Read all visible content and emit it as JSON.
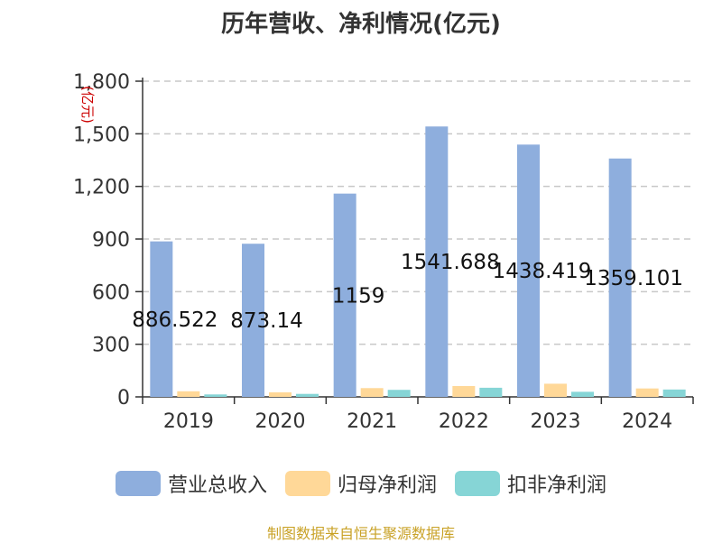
{
  "chart_data": {
    "type": "bar",
    "title": "历年营收、净利情况(亿元)",
    "ylabel": "(亿元)",
    "xlabel": "",
    "categories": [
      "2019",
      "2020",
      "2021",
      "2022",
      "2023",
      "2024"
    ],
    "series": [
      {
        "name": "营业总收入",
        "values": [
          886.522,
          873.14,
          1159,
          1541.688,
          1438.419,
          1359.101
        ],
        "color": "#8eaedd"
      },
      {
        "name": "归母净利润",
        "values": [
          32,
          26,
          50,
          62,
          75,
          48
        ],
        "color": "#ffd898"
      },
      {
        "name": "扣非净利润",
        "values": [
          14,
          17,
          40,
          52,
          29,
          42
        ],
        "color": "#86d5d6"
      }
    ],
    "data_labels": [
      "886.522",
      "873.14",
      "1159",
      "1541.688",
      "1438.419",
      "1359.101"
    ],
    "ylim": [
      0,
      1800
    ],
    "yticks": [
      "0",
      "300",
      "600",
      "900",
      "1,200",
      "1,500",
      "1,800"
    ],
    "ytick_values": [
      0,
      300,
      600,
      900,
      1200,
      1500,
      1800
    ],
    "grid": true,
    "legend_position": "bottom"
  },
  "source": "制图数据来自恒生聚源数据库"
}
